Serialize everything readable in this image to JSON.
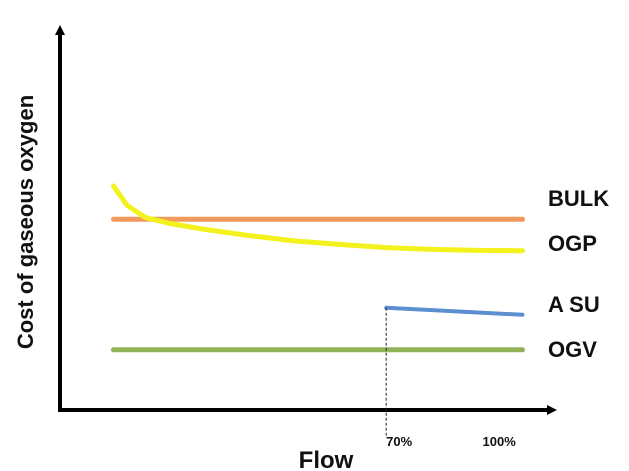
{
  "chart_data": {
    "type": "line",
    "title": "",
    "xlabel": "Flow",
    "ylabel": "Cost of gaseous oxygen",
    "xlim": [
      0,
      110
    ],
    "ylim": [
      0,
      100
    ],
    "x_ticks": [
      {
        "value": 70,
        "label": "70%"
      },
      {
        "value": 100,
        "label": "100%"
      }
    ],
    "grid": false,
    "legend": "none",
    "reference_lines": [
      {
        "value": 70
      }
    ],
    "series": [
      {
        "name": "BULK",
        "color": "#F29A5B",
        "points": [
          [
            10,
            54.5
          ],
          [
            100,
            54.5
          ]
        ]
      },
      {
        "name": "OGP",
        "color": "#F3F21C",
        "points": [
          [
            10,
            64
          ],
          [
            13,
            58.5
          ],
          [
            17,
            55
          ],
          [
            22,
            53.4
          ],
          [
            30,
            51.6
          ],
          [
            40,
            49.8
          ],
          [
            50,
            48.3
          ],
          [
            60,
            47.3
          ],
          [
            70,
            46.4
          ],
          [
            80,
            45.9
          ],
          [
            90,
            45.6
          ],
          [
            100,
            45.5
          ]
        ]
      },
      {
        "name": "A SU",
        "color": "#5B8FCF",
        "points": [
          [
            70,
            29.2
          ],
          [
            100,
            27.2
          ]
        ]
      },
      {
        "name": "OGV",
        "color": "#92B35A",
        "points": [
          [
            10,
            17.2
          ],
          [
            100,
            17.2
          ]
        ]
      }
    ]
  }
}
